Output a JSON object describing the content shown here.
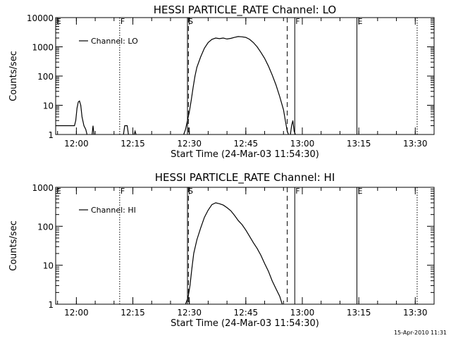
{
  "footer": {
    "timestamp": "15-Apr-2010 11:31"
  },
  "chart_data": [
    {
      "type": "line",
      "title": "HESSI PARTICLE_RATE Channel: LO",
      "xlabel": "Start Time (24-Mar-03 11:54:30)",
      "ylabel": "Counts/sec",
      "yscale": "log",
      "ylim": [
        1,
        10000
      ],
      "xlim": [
        "11:54:30",
        "13:35:00"
      ],
      "xticks": [
        "12:00",
        "12:15",
        "12:30",
        "12:45",
        "13:00",
        "13:15",
        "13:30"
      ],
      "yticks": [
        "1",
        "10",
        "100",
        "1000",
        "10000"
      ],
      "legend": {
        "position": "top-left",
        "entries": [
          "Channel: LO"
        ]
      },
      "markers": [
        {
          "label": "E",
          "time": "11:54:30",
          "style": "dotted"
        },
        {
          "label": "F",
          "time": "12:11:30",
          "style": "dotted"
        },
        {
          "label": "S",
          "time": "12:29:30",
          "style": "solid"
        },
        {
          "label": "",
          "time": "12:29:45",
          "style": "dashed"
        },
        {
          "label": "",
          "time": "12:56:00",
          "style": "dashed"
        },
        {
          "label": "F",
          "time": "12:58:00",
          "style": "solid"
        },
        {
          "label": "E",
          "time": "13:14:30",
          "style": "solid"
        },
        {
          "label": "",
          "time": "13:30:30",
          "style": "dotted"
        }
      ],
      "series": [
        {
          "segments": [
            [
              [
                "11:54:30",
                2
              ],
              [
                "11:59:30",
                2
              ],
              [
                "11:59:50",
                3
              ],
              [
                "12:00:10",
                8
              ],
              [
                "12:00:30",
                13
              ],
              [
                "12:00:50",
                14
              ],
              [
                "12:01:10",
                10
              ],
              [
                "12:01:30",
                4
              ],
              [
                "12:02:00",
                2
              ],
              [
                "12:02:30",
                1.5
              ],
              [
                "12:02:50",
                1
              ]
            ],
            [
              [
                "12:04:10",
                1
              ],
              [
                "12:04:25",
                2
              ],
              [
                "12:04:40",
                1
              ]
            ],
            [
              [
                "12:12:30",
                1
              ],
              [
                "12:12:50",
                2
              ],
              [
                "12:13:30",
                2
              ],
              [
                "12:13:50",
                1
              ]
            ],
            [
              [
                "12:15:20",
                1
              ],
              [
                "12:15:35",
                1.3
              ],
              [
                "12:15:50",
                1
              ]
            ],
            [
              [
                "12:28:30",
                1
              ],
              [
                "12:29:00",
                1.5
              ],
              [
                "12:29:30",
                3
              ],
              [
                "12:30:00",
                6
              ],
              [
                "12:30:30",
                15
              ],
              [
                "12:31:00",
                40
              ],
              [
                "12:31:30",
                100
              ],
              [
                "12:32:00",
                200
              ],
              [
                "12:33:00",
                450
              ],
              [
                "12:34:00",
                900
              ],
              [
                "12:35:00",
                1400
              ],
              [
                "12:36:00",
                1800
              ],
              [
                "12:37:00",
                2000
              ],
              [
                "12:38:00",
                1900
              ],
              [
                "12:39:00",
                2000
              ],
              [
                "12:40:00",
                1850
              ],
              [
                "12:41:00",
                1950
              ],
              [
                "12:42:00",
                2100
              ],
              [
                "12:43:00",
                2250
              ],
              [
                "12:44:00",
                2200
              ],
              [
                "12:45:00",
                2100
              ],
              [
                "12:46:00",
                1800
              ],
              [
                "12:47:00",
                1400
              ],
              [
                "12:48:00",
                1000
              ],
              [
                "12:49:00",
                650
              ],
              [
                "12:50:00",
                400
              ],
              [
                "12:51:00",
                220
              ],
              [
                "12:52:00",
                110
              ],
              [
                "12:53:00",
                50
              ],
              [
                "12:54:00",
                20
              ],
              [
                "12:55:00",
                7
              ],
              [
                "12:55:30",
                3
              ],
              [
                "12:56:00",
                1.3
              ],
              [
                "12:56:20",
                1
              ]
            ],
            [
              [
                "12:56:50",
                1
              ],
              [
                "12:57:10",
                2
              ],
              [
                "12:57:30",
                3
              ],
              [
                "12:57:50",
                1.3
              ],
              [
                "12:58:10",
                1
              ]
            ]
          ]
        }
      ]
    },
    {
      "type": "line",
      "title": "HESSI PARTICLE_RATE Channel: HI",
      "xlabel": "Start Time (24-Mar-03 11:54:30)",
      "ylabel": "Counts/sec",
      "yscale": "log",
      "ylim": [
        1,
        1000
      ],
      "xlim": [
        "11:54:30",
        "13:35:00"
      ],
      "xticks": [
        "12:00",
        "12:15",
        "12:30",
        "12:45",
        "13:00",
        "13:15",
        "13:30"
      ],
      "yticks": [
        "1",
        "10",
        "100",
        "1000"
      ],
      "legend": {
        "position": "top-left",
        "entries": [
          "Channel: HI"
        ]
      },
      "markers": [
        {
          "label": "E",
          "time": "11:54:30",
          "style": "dotted"
        },
        {
          "label": "F",
          "time": "12:11:30",
          "style": "dotted"
        },
        {
          "label": "S",
          "time": "12:29:30",
          "style": "solid"
        },
        {
          "label": "",
          "time": "12:29:45",
          "style": "dashed"
        },
        {
          "label": "",
          "time": "12:56:00",
          "style": "dashed"
        },
        {
          "label": "F",
          "time": "12:58:00",
          "style": "solid"
        },
        {
          "label": "E",
          "time": "13:14:30",
          "style": "solid"
        },
        {
          "label": "",
          "time": "13:30:30",
          "style": "dotted"
        }
      ],
      "series": [
        {
          "segments": [
            [
              [
                "12:29:00",
                1
              ],
              [
                "12:29:40",
                1.5
              ],
              [
                "12:30:10",
                3
              ],
              [
                "12:30:40",
                8
              ],
              [
                "12:31:10",
                20
              ],
              [
                "12:32:00",
                45
              ],
              [
                "12:33:00",
                90
              ],
              [
                "12:34:00",
                170
              ],
              [
                "12:35:00",
                260
              ],
              [
                "12:36:00",
                360
              ],
              [
                "12:37:00",
                400
              ],
              [
                "12:38:00",
                380
              ],
              [
                "12:39:00",
                350
              ],
              [
                "12:40:00",
                300
              ],
              [
                "12:41:00",
                250
              ],
              [
                "12:42:00",
                190
              ],
              [
                "12:43:00",
                140
              ],
              [
                "12:44:00",
                110
              ],
              [
                "12:45:00",
                80
              ],
              [
                "12:46:00",
                55
              ],
              [
                "12:47:00",
                38
              ],
              [
                "12:48:00",
                27
              ],
              [
                "12:49:00",
                18
              ],
              [
                "12:50:00",
                11
              ],
              [
                "12:51:00",
                7
              ],
              [
                "12:52:00",
                4
              ],
              [
                "12:53:00",
                2.5
              ],
              [
                "12:54:00",
                1.6
              ],
              [
                "12:54:40",
                1
              ]
            ]
          ]
        }
      ]
    }
  ]
}
